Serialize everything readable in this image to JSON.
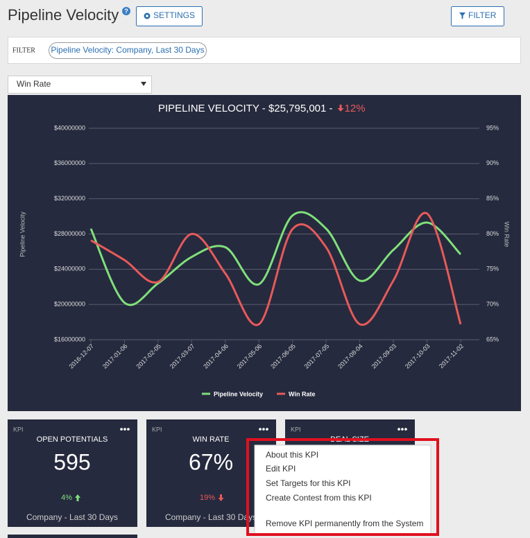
{
  "header": {
    "title": "Pipeline Velocity",
    "settings_button": "SETTINGS",
    "filter_button": "FILTER"
  },
  "filter_bar": {
    "label": "FILTER",
    "chip": "Pipeline Velocity: Company, Last 30 Days"
  },
  "dropdown": {
    "selected": "Win Rate"
  },
  "chart_data": {
    "type": "line",
    "title": "PIPELINE VELOCITY - $25,795,001 -",
    "change": "12%",
    "y_label": "Pipeline Velocity",
    "y2_label": "Win Rate",
    "categories": [
      "2016-12-07",
      "2017-01-06",
      "2017-02-05",
      "2017-03-07",
      "2017-04-06",
      "2017-05-06",
      "2017-06-05",
      "2017-07-05",
      "2017-08-04",
      "2017-09-03",
      "2017-10-03",
      "2017-11-02"
    ],
    "series": [
      {
        "name": "Pipeline Velocity",
        "color": "#7fe07a",
        "values": [
          28600000,
          20200000,
          22400000,
          25400000,
          26500000,
          22300000,
          30100000,
          28600000,
          22700000,
          26200000,
          29300000,
          25700000
        ]
      },
      {
        "name": "Win Rate",
        "color": "#e85a5a",
        "axis": "y2",
        "values": [
          79.1,
          76.3,
          73.2,
          80.0,
          74.4,
          67.2,
          80.7,
          78.1,
          67.2,
          73.4,
          82.9,
          67.2
        ]
      }
    ],
    "ylim": [
      16000000,
      40000000
    ],
    "yticks": [
      {
        "value": 16000000,
        "label": "$16000000"
      },
      {
        "value": 20000000,
        "label": "$20000000"
      },
      {
        "value": 24000000,
        "label": "$24000000"
      },
      {
        "value": 28000000,
        "label": "$28000000"
      },
      {
        "value": 32000000,
        "label": "$32000000"
      },
      {
        "value": 36000000,
        "label": "$36000000"
      },
      {
        "value": 40000000,
        "label": "$40000000"
      }
    ],
    "y2lim": [
      65,
      95
    ],
    "y2ticks": [
      {
        "value": 65,
        "label": "65%"
      },
      {
        "value": 70,
        "label": "70%"
      },
      {
        "value": 75,
        "label": "75%"
      },
      {
        "value": 80,
        "label": "80%"
      },
      {
        "value": 85,
        "label": "85%"
      },
      {
        "value": 90,
        "label": "90%"
      },
      {
        "value": 95,
        "label": "95%"
      }
    ],
    "grid": true,
    "legend": "bottom"
  },
  "kpi_cards": [
    {
      "tag": "KPI",
      "title": "OPEN POTENTIALS",
      "value": "595",
      "change": "4%",
      "footer": "Company - Last 30 Days"
    },
    {
      "tag": "KPI",
      "title": "WIN RATE",
      "value": "67%",
      "change": "19%",
      "footer": "Company - Last 30 Days"
    },
    {
      "tag": "KPI",
      "title": "DEAL SIZE"
    }
  ],
  "context_menu": {
    "items": [
      "About this KPI",
      "Edit KPI",
      "Set Targets for this KPI",
      "Create Contest from this KPI",
      "Remove KPI permanently from the System"
    ]
  }
}
